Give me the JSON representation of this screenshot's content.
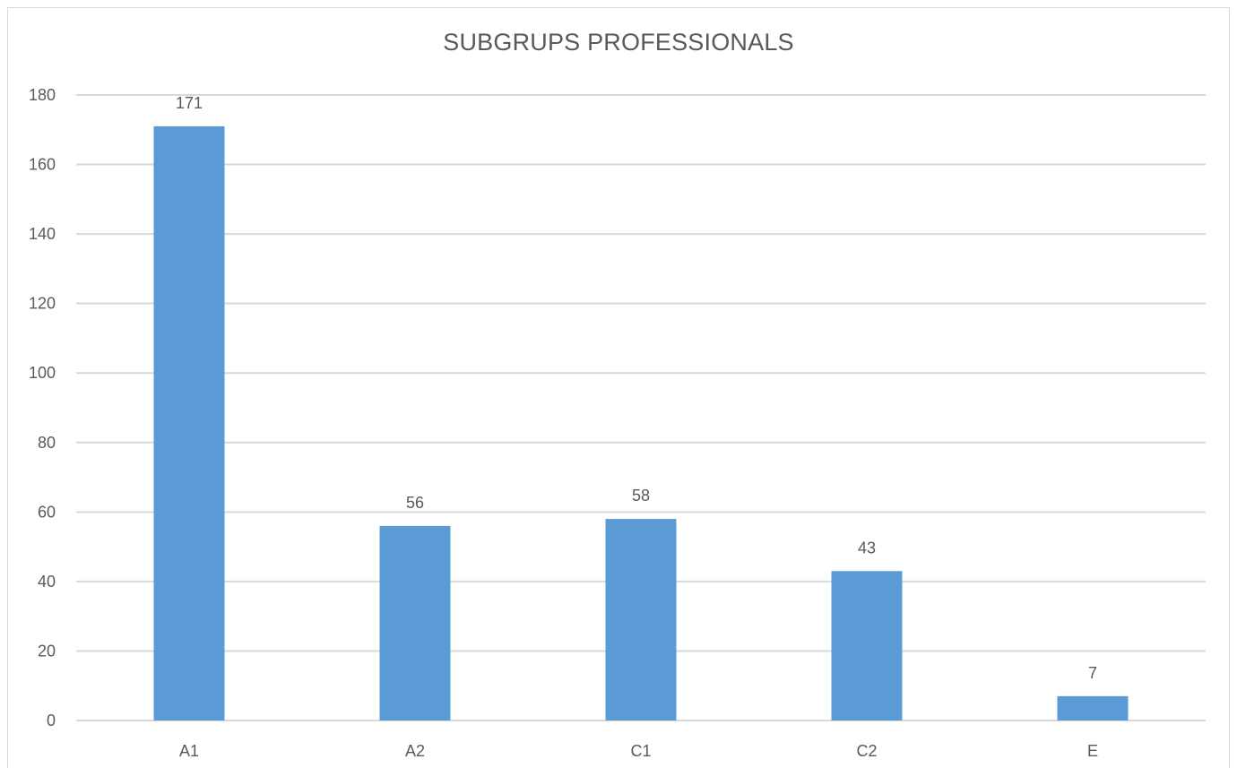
{
  "chart_data": {
    "type": "bar",
    "title": "SUBGRUPS PROFESSIONALS",
    "categories": [
      "A1",
      "A2",
      "C1",
      "C2",
      "E"
    ],
    "values": [
      171,
      56,
      58,
      43,
      7
    ],
    "data_labels": [
      "171",
      "56",
      "58",
      "43",
      "7"
    ],
    "y_ticks": [
      "0",
      "20",
      "40",
      "60",
      "80",
      "100",
      "120",
      "140",
      "160",
      "180"
    ],
    "ylim": [
      0,
      180
    ],
    "grid": true,
    "legend": "none",
    "bar_color": "#5b9bd5",
    "grid_color": "#d9d9d9",
    "text_color": "#595959"
  }
}
